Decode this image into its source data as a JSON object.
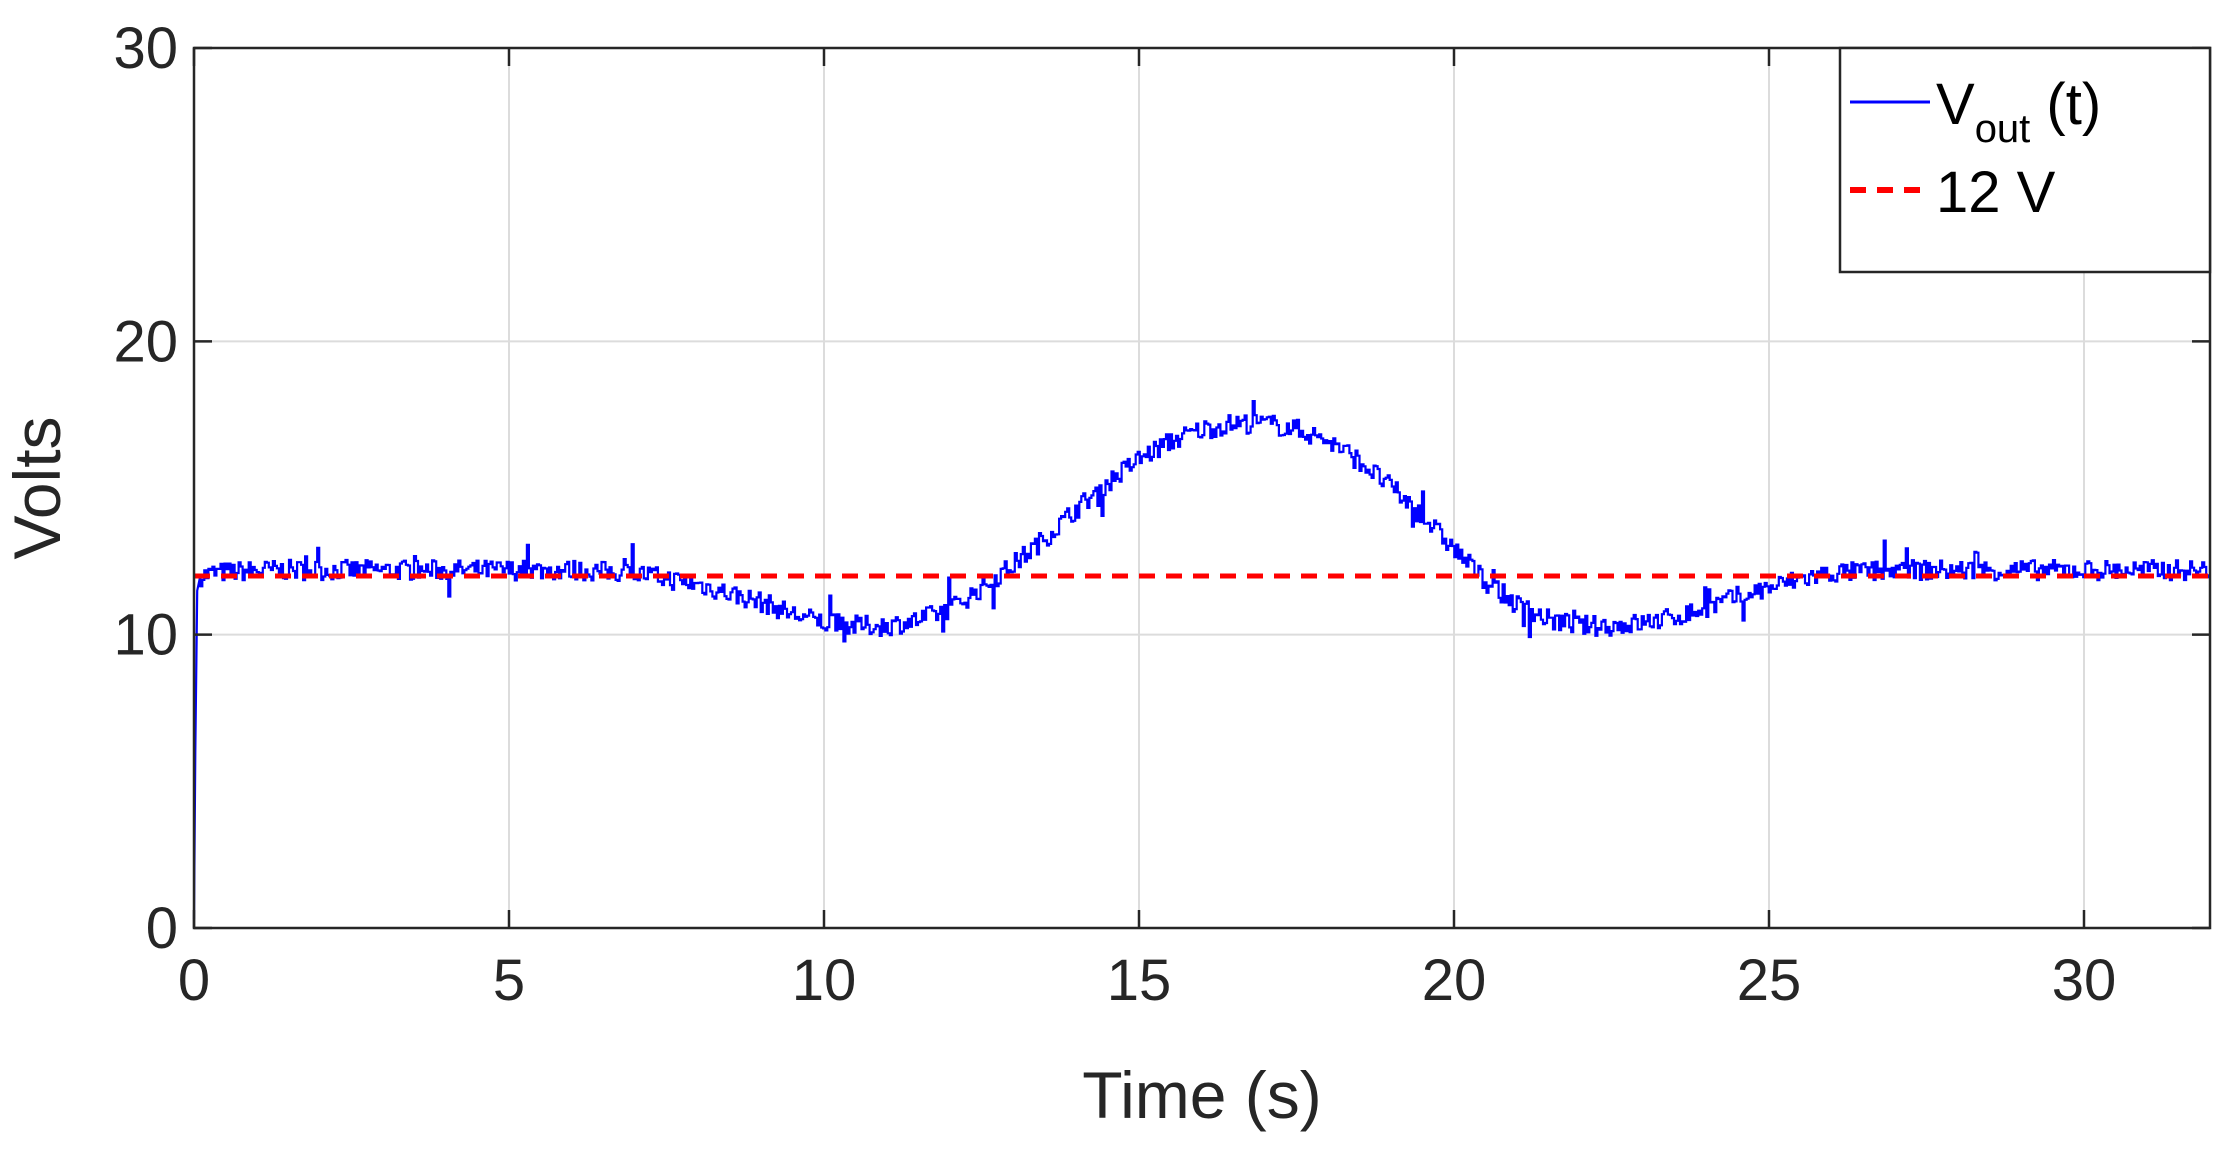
{
  "colors": {
    "series_vout": "#0000ff",
    "series_ref": "#ff0000",
    "grid": "#dcdcdc",
    "axis": "#262626",
    "background": "#ffffff"
  },
  "chart_data": {
    "type": "line",
    "title": "",
    "xlabel": "Time (s)",
    "ylabel": "Volts",
    "xlim": [
      0,
      32
    ],
    "ylim": [
      0,
      30
    ],
    "xticks": [
      0,
      5,
      10,
      15,
      20,
      25,
      30
    ],
    "yticks": [
      0,
      10,
      20,
      30
    ],
    "xtick_labels": [
      "0",
      "5",
      "10",
      "15",
      "20",
      "25",
      "30"
    ],
    "ytick_labels": [
      "0",
      "10",
      "20",
      "30"
    ],
    "grid": true,
    "legend": {
      "placement": "top-right",
      "entries": [
        {
          "label_main": "V",
          "label_sub": "out",
          "label_rest": " (t)",
          "style": "solid",
          "color": "#0000ff"
        },
        {
          "label_main": "12 V",
          "label_sub": "",
          "label_rest": "",
          "style": "dashed",
          "color": "#ff0000"
        }
      ]
    },
    "series": [
      {
        "name": "Vout (t)",
        "style": "solid",
        "color": "#0000ff",
        "noise": 0.35,
        "x": [
          0,
          0.02,
          0.05,
          0.1,
          0.3,
          1.0,
          2.0,
          3.0,
          4.0,
          5.0,
          6.0,
          7.0,
          7.5,
          8.0,
          8.5,
          9.0,
          9.5,
          10.0,
          10.5,
          11.0,
          11.5,
          12.0,
          12.5,
          13.0,
          13.5,
          14.0,
          14.5,
          15.0,
          15.5,
          16.0,
          16.5,
          17.0,
          17.5,
          18.0,
          18.5,
          19.0,
          19.5,
          20.0,
          20.5,
          21.0,
          21.5,
          22.0,
          22.5,
          23.0,
          23.5,
          24.0,
          24.5,
          25.0,
          25.5,
          26.0,
          27.0,
          28.0,
          29.0,
          30.0,
          31.0,
          32.0
        ],
        "y": [
          0.3,
          6.0,
          11.5,
          12.0,
          12.1,
          12.2,
          12.2,
          12.2,
          12.2,
          12.2,
          12.2,
          12.1,
          11.9,
          11.7,
          11.4,
          11.1,
          10.7,
          10.4,
          10.3,
          10.3,
          10.5,
          10.9,
          11.6,
          12.4,
          13.3,
          14.3,
          15.2,
          16.0,
          16.6,
          17.0,
          17.2,
          17.2,
          17.0,
          16.6,
          15.9,
          15.0,
          14.0,
          12.9,
          11.8,
          11.0,
          10.5,
          10.3,
          10.3,
          10.4,
          10.6,
          10.9,
          11.3,
          11.6,
          11.9,
          12.1,
          12.2,
          12.2,
          12.2,
          12.2,
          12.2,
          12.2
        ]
      },
      {
        "name": "12 V",
        "style": "dashed",
        "color": "#ff0000",
        "x": [
          0,
          32
        ],
        "y": [
          12,
          12
        ]
      }
    ]
  }
}
